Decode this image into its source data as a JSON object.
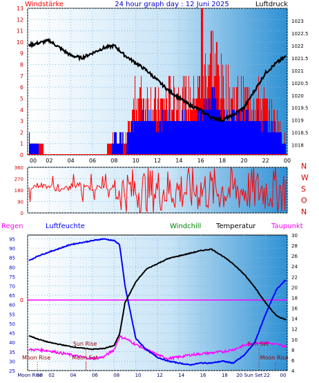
{
  "header": {
    "left_label": "Windstärke",
    "title": "24 hour graph day : 12 Juni 2025",
    "right_label": "Luftdruck"
  },
  "colors": {
    "wind": "#ff0000",
    "gust_blue": "#0000ff",
    "pressure": "#000000",
    "humidity": "#0000ff",
    "windchill": "#008000",
    "temperature": "#000000",
    "dewpoint": "#ff00ff",
    "rain": "#ff0000"
  },
  "chart_data": [
    {
      "type": "bar+line",
      "panel": "wind_pressure",
      "x_tick_labels": [
        "00",
        "02",
        "04",
        "06",
        "08",
        "10",
        "12",
        "14",
        "16",
        "18",
        "20",
        "22",
        "00"
      ],
      "left_axis": {
        "ticks": [
          0,
          1,
          2,
          3,
          4,
          5,
          6,
          7,
          8,
          9,
          10,
          11,
          12,
          13
        ],
        "ylim": [
          0,
          13
        ]
      },
      "right_axis": {
        "ticks": [
          "1018",
          "1018.5",
          "1019",
          "1019.5",
          "1020",
          "1020.5",
          "1021",
          "1021.5",
          "1022",
          "1022.5",
          "1023"
        ],
        "ylim": [
          1017.6,
          1023.5
        ]
      },
      "pressure_series": {
        "hours": [
          0,
          1,
          2,
          3,
          4,
          5,
          6,
          7,
          8,
          9,
          10,
          11,
          12,
          13,
          14,
          15,
          16,
          17,
          18,
          19,
          20,
          21,
          22,
          23,
          24
        ],
        "values": [
          1022.0,
          1022.1,
          1022.2,
          1021.9,
          1021.6,
          1021.5,
          1021.7,
          1021.9,
          1022.0,
          1021.6,
          1021.3,
          1021.0,
          1020.6,
          1020.2,
          1019.9,
          1019.6,
          1019.4,
          1019.1,
          1019.0,
          1019.2,
          1019.5,
          1020.2,
          1020.9,
          1021.3,
          1021.6
        ]
      },
      "wind_series": {
        "hours": [
          0,
          0.5,
          1,
          2,
          3,
          4,
          5,
          6,
          7,
          7.5,
          8,
          8.5,
          9,
          9.5,
          10,
          11,
          12,
          13,
          14,
          15,
          16,
          17,
          18,
          19,
          20,
          21,
          22,
          23,
          24
        ],
        "values": [
          2,
          1,
          1,
          0,
          0,
          0,
          0,
          0,
          0,
          1,
          2,
          2,
          1,
          3,
          5,
          5,
          4,
          5,
          5,
          5,
          6,
          9,
          6,
          5,
          5,
          5,
          4,
          3,
          1
        ]
      }
    },
    {
      "type": "line",
      "panel": "wind_direction",
      "left_axis": {
        "ticks": [
          0,
          90,
          180,
          270,
          360
        ],
        "ylim": [
          0,
          360
        ]
      },
      "right_labels": [
        "N",
        "W",
        "S",
        "O",
        "N"
      ],
      "direction_series": {
        "hours": [
          0,
          1,
          2,
          3,
          4,
          5,
          6,
          7,
          8,
          9,
          10,
          11,
          12,
          13,
          14,
          15,
          16,
          17,
          18,
          19,
          20,
          21,
          22,
          23,
          24
        ],
        "values": [
          200,
          220,
          210,
          180,
          200,
          230,
          190,
          210,
          200,
          170,
          220,
          180,
          150,
          200,
          190,
          210,
          220,
          200,
          180,
          230,
          190,
          200,
          180,
          210,
          190
        ]
      }
    },
    {
      "type": "line",
      "panel": "climate",
      "labels": {
        "regen": "Regen",
        "luftfeuchte": "Luftfeuchte",
        "windchill": "Windchill",
        "temperatur": "Temperatur",
        "taupunkt": "Taupunkt"
      },
      "left_axis": {
        "ticks": [
          25,
          30,
          35,
          40,
          45,
          50,
          55,
          60,
          65,
          70,
          75,
          80,
          85,
          90,
          95
        ],
        "ylim": [
          25,
          97
        ]
      },
      "right_axis": {
        "ticks": [
          4,
          6,
          8,
          10,
          12,
          14,
          16,
          18,
          20,
          22,
          24,
          26,
          28,
          30
        ],
        "ylim": [
          4,
          30
        ]
      },
      "rain_label": "0",
      "events": [
        {
          "label": "Moon Rise",
          "hour": 0.8,
          "row": "lower"
        },
        {
          "label": "Moon Set",
          "hour": 5.3,
          "row": "lower"
        },
        {
          "label": "Sun Rise",
          "hour": 5.3,
          "row": "upper"
        },
        {
          "label": "Sun Set",
          "hour": 21.3,
          "row": "upper"
        },
        {
          "label": "Moon Rise",
          "hour": 22.8,
          "row": "lower"
        }
      ],
      "bottom_labels": [
        {
          "text": "Moon Rise",
          "hour": 0.6
        },
        {
          "text": "00",
          "hour": 1.5
        },
        {
          "text": "02",
          "hour": 2.6
        },
        {
          "text": "04",
          "hour": 4.6
        },
        {
          "text": "06",
          "hour": 6.6
        },
        {
          "text": "08",
          "hour": 8.6
        },
        {
          "text": "10",
          "hour": 10.6
        },
        {
          "text": "12",
          "hour": 12.6
        },
        {
          "text": "14",
          "hour": 14.6
        },
        {
          "text": "16",
          "hour": 16.6
        },
        {
          "text": "18",
          "hour": 18.6
        },
        {
          "text": "20 Sun Set",
          "hour": 20.9
        },
        {
          "text": "22",
          "hour": 22.5
        },
        {
          "text": "00",
          "hour": 24
        }
      ],
      "humidity_series": {
        "hours": [
          0,
          1,
          2,
          3,
          4,
          5,
          6,
          7,
          8,
          8.5,
          9,
          10,
          11,
          12,
          13,
          14,
          15,
          16,
          17,
          18,
          19,
          20,
          21,
          22,
          23,
          24
        ],
        "values": [
          83,
          86,
          88,
          90,
          92,
          93,
          94,
          95,
          94,
          92,
          70,
          42,
          36,
          32,
          30,
          29,
          28,
          29,
          29,
          30,
          29,
          33,
          40,
          55,
          68,
          74
        ]
      },
      "temperature_series": {
        "hours": [
          0,
          1,
          2,
          3,
          4,
          5,
          6,
          7,
          8,
          8.5,
          9,
          10,
          11,
          12,
          13,
          14,
          15,
          16,
          17,
          18,
          19,
          20,
          21,
          22,
          23,
          24
        ],
        "values": [
          10.8,
          10,
          9.4,
          9,
          8.6,
          8.3,
          8.1,
          8.2,
          8.8,
          11,
          17,
          21,
          23.5,
          24.5,
          25.5,
          26,
          26.5,
          27,
          27.3,
          26,
          24.5,
          22.5,
          20,
          17,
          14.5,
          13.6
        ]
      },
      "windchill_series": {
        "hours": [
          0,
          4,
          8,
          12,
          15,
          17,
          18,
          20,
          24
        ],
        "values": [
          10.8,
          8.6,
          8.8,
          24.5,
          26.5,
          27.5,
          26,
          22.5,
          13.6
        ]
      },
      "dewpoint_series": {
        "hours": [
          0,
          1,
          2,
          3,
          4,
          5,
          6,
          7,
          8,
          8.5,
          9,
          10,
          11,
          12,
          13,
          14,
          15,
          16,
          17,
          18,
          19,
          20,
          21,
          22,
          23,
          24
        ],
        "values": [
          8,
          8,
          7.8,
          7.4,
          7,
          6.6,
          6.3,
          6.6,
          8,
          10.5,
          10.2,
          9,
          8,
          7,
          6.3,
          6.6,
          7,
          7.2,
          7.4,
          7.6,
          8,
          8.8,
          9.3,
          9.4,
          9,
          8.6
        ]
      }
    }
  ]
}
